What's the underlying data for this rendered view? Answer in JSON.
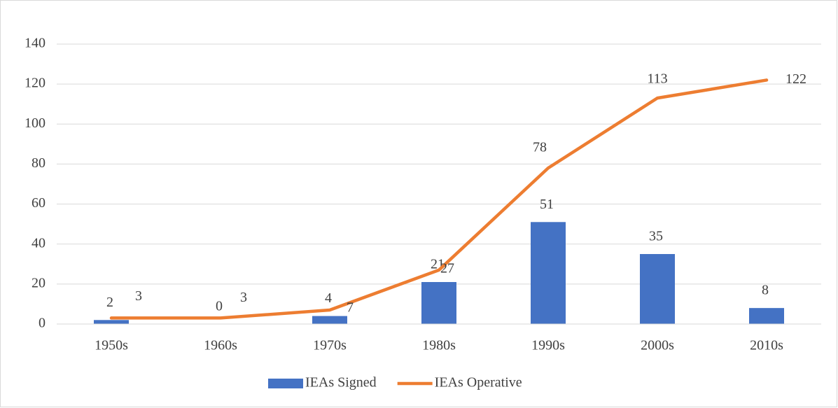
{
  "chart_data": {
    "type": "combo",
    "categories": [
      "1950s",
      "1960s",
      "1970s",
      "1980s",
      "1990s",
      "2000s",
      "2010s"
    ],
    "series": [
      {
        "name": "IEAs Signed",
        "type": "bar",
        "color": "#4472c4",
        "values": [
          2,
          0,
          4,
          21,
          51,
          35,
          8
        ]
      },
      {
        "name": "IEAs Operative",
        "type": "line",
        "color": "#ed7d31",
        "values": [
          3,
          3,
          7,
          27,
          78,
          113,
          122
        ]
      }
    ],
    "ylim": [
      0,
      140
    ],
    "yticks": [
      0,
      20,
      40,
      60,
      80,
      100,
      120,
      140
    ],
    "grid": true,
    "legend": "bottom"
  }
}
